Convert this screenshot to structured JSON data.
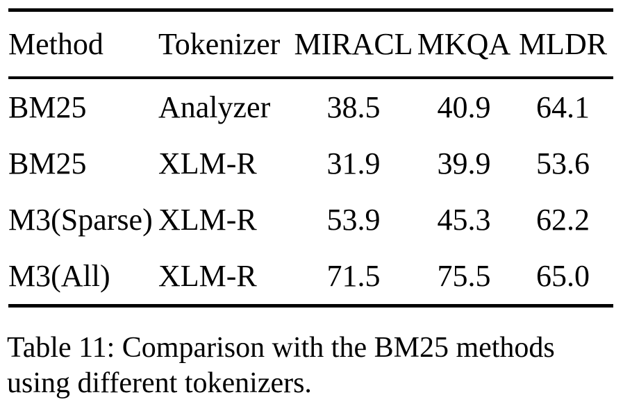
{
  "page": {
    "background_color": "#ffffff",
    "text_color": "#000000",
    "rule_color": "#000000"
  },
  "table": {
    "columns": [
      "Method",
      "Tokenizer",
      "MIRACL",
      "MKQA",
      "MLDR"
    ],
    "rows": [
      [
        "BM25",
        "Analyzer",
        "38.5",
        "40.9",
        "64.1"
      ],
      [
        "BM25",
        "XLM-R",
        "31.9",
        "39.9",
        "53.6"
      ],
      [
        "M3(Sparse)",
        "XLM-R",
        "53.9",
        "45.3",
        "62.2"
      ],
      [
        "M3(All)",
        "XLM-R",
        "71.5",
        "75.5",
        "65.0"
      ]
    ]
  },
  "caption": "Table 11: Comparison with the BM25 methods using different tokenizers."
}
